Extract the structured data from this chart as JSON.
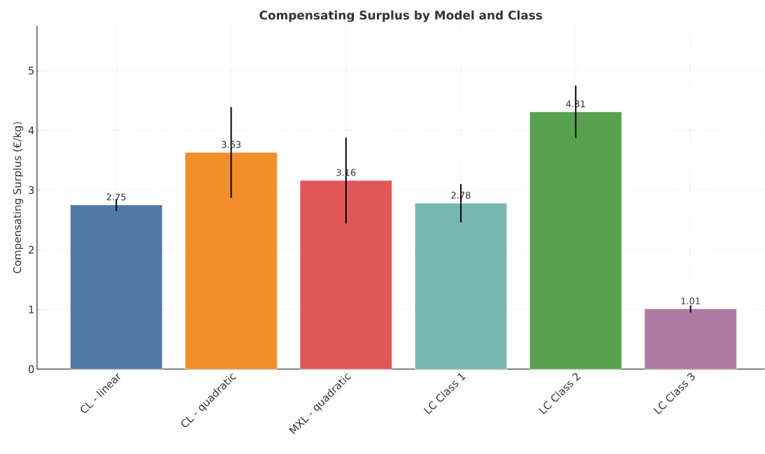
{
  "chart_data": {
    "type": "bar",
    "title": "Compensating Surplus by Model and Class",
    "ylabel": "Compensating Surplus (€/kg)",
    "categories": [
      "CL - linear",
      "CL - quadratic",
      "MXL - quadratic",
      "LC Class 1",
      "LC Class 2",
      "LC Class 3"
    ],
    "values": [
      2.75,
      3.63,
      3.16,
      2.78,
      4.31,
      1.01
    ],
    "errors": [
      0.1,
      0.76,
      0.72,
      0.32,
      0.44,
      0.06
    ],
    "colors": [
      "#4e79a7",
      "#f28e2b",
      "#e15759",
      "#76b7b2",
      "#59a14f",
      "#af7aa1"
    ],
    "ylim": [
      0,
      5.75
    ],
    "yticks": [
      0,
      1,
      2,
      3,
      4,
      5
    ],
    "grid": true,
    "data_labels": true
  }
}
